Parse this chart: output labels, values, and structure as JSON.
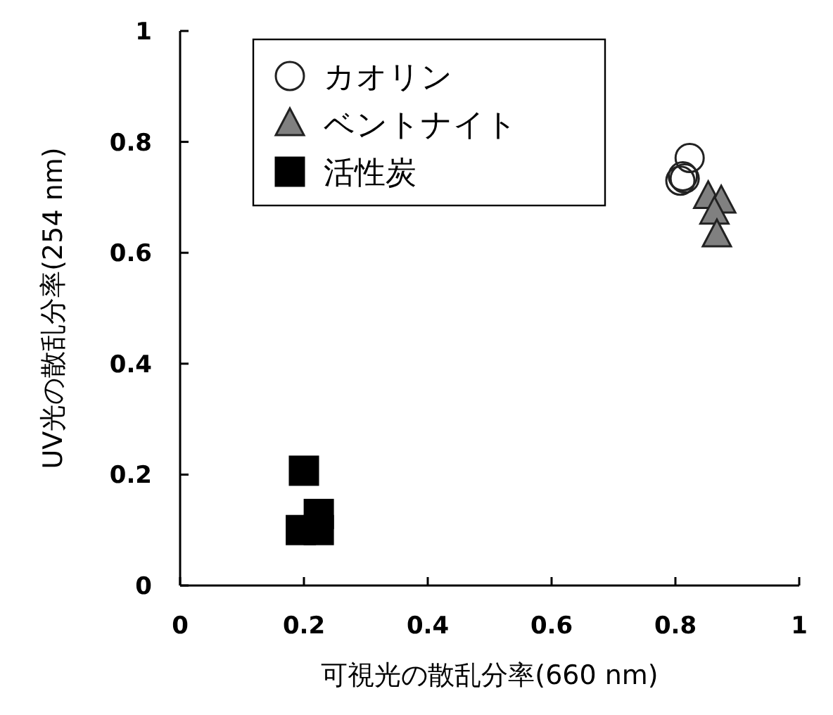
{
  "chart_data": {
    "type": "scatter",
    "xlabel": "可視光の散乱分率(660 nm)",
    "ylabel": "UV光の散乱分率(254 nm)",
    "xlim": [
      0,
      1
    ],
    "ylim": [
      0,
      1
    ],
    "xticks": [
      0,
      0.2,
      0.4,
      0.6,
      0.8,
      1
    ],
    "yticks": [
      0,
      0.2,
      0.4,
      0.6,
      0.8,
      1
    ],
    "grid": false,
    "legend": "top left",
    "series": [
      {
        "name": "カオリン",
        "color": "#222222",
        "marker": "circle",
        "x": [
          0.823,
          0.812,
          0.808,
          0.815
        ],
        "values": [
          0.771,
          0.738,
          0.73,
          0.734
        ]
      },
      {
        "name": "ベントナイト",
        "color": "#808080",
        "marker": "triangle",
        "x": [
          0.853,
          0.874,
          0.863,
          0.867
        ],
        "values": [
          0.701,
          0.693,
          0.673,
          0.632
        ]
      },
      {
        "name": "活性炭",
        "color": "#000000",
        "marker": "square",
        "x": [
          0.2,
          0.224,
          0.195,
          0.224
        ],
        "values": [
          0.207,
          0.129,
          0.1,
          0.1
        ]
      }
    ]
  }
}
